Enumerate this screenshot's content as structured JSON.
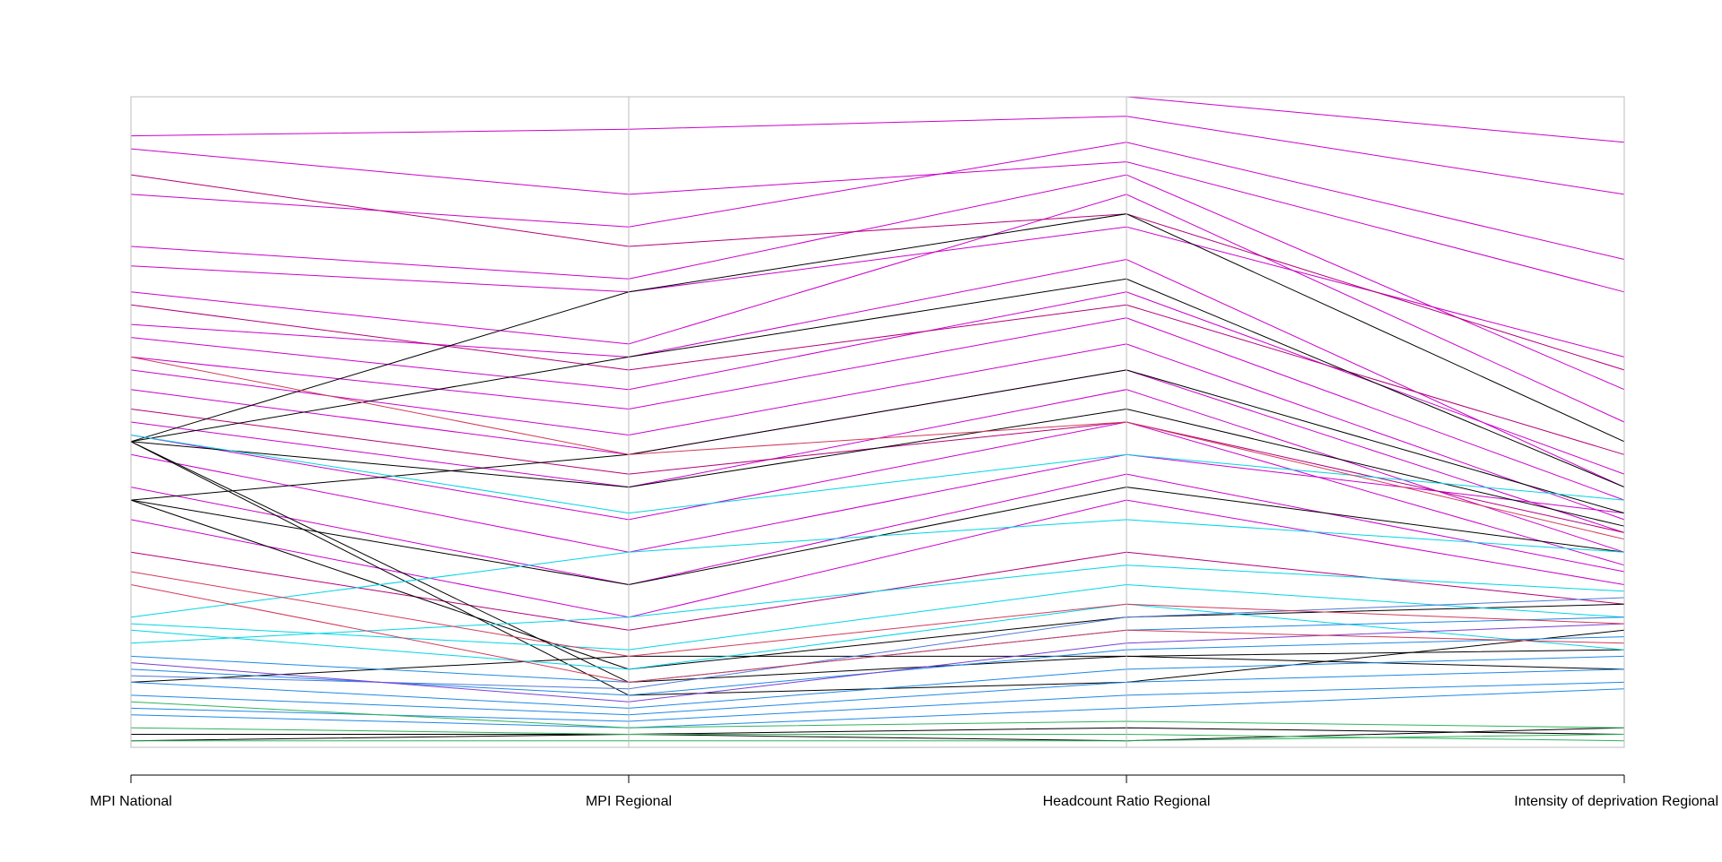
{
  "chart_data": {
    "type": "parallel-coordinates",
    "axes": [
      "MPI National",
      "MPI Regional",
      "Headcount Ratio Regional",
      "Intensity of deprivation Regional"
    ],
    "normalized_range": [
      0,
      1
    ],
    "grid": false,
    "legend": "none",
    "series": [
      {
        "color": "#cc00cc",
        "values": [
          1.0,
          1.0,
          1.0,
          0.93
        ]
      },
      {
        "color": "#cc00cc",
        "values": [
          0.94,
          0.95,
          0.97,
          0.85
        ]
      },
      {
        "color": "#cc00cc",
        "values": [
          0.92,
          0.85,
          0.9,
          0.7
        ]
      },
      {
        "color": "#cc00cc",
        "values": [
          0.85,
          0.8,
          0.93,
          0.75
        ]
      },
      {
        "color": "#cc00cc",
        "values": [
          0.77,
          0.72,
          0.88,
          0.55
        ]
      },
      {
        "color": "#cc00cc",
        "values": [
          0.74,
          0.7,
          0.8,
          0.6
        ]
      },
      {
        "color": "#cc00cc",
        "values": [
          0.7,
          0.62,
          0.85,
          0.5
        ]
      },
      {
        "color": "#cc00cc",
        "values": [
          0.65,
          0.6,
          0.75,
          0.4
        ]
      },
      {
        "color": "#cc00cc",
        "values": [
          0.63,
          0.55,
          0.7,
          0.42
        ]
      },
      {
        "color": "#cc00cc",
        "values": [
          0.6,
          0.52,
          0.66,
          0.38
        ]
      },
      {
        "color": "#cc00cc",
        "values": [
          0.58,
          0.48,
          0.62,
          0.35
        ]
      },
      {
        "color": "#cc00cc",
        "values": [
          0.55,
          0.45,
          0.58,
          0.33
        ]
      },
      {
        "color": "#cc00cc",
        "values": [
          0.5,
          0.4,
          0.55,
          0.3
        ]
      },
      {
        "color": "#cc00cc",
        "values": [
          0.48,
          0.35,
          0.5,
          0.28
        ]
      },
      {
        "color": "#cc00cc",
        "values": [
          0.45,
          0.3,
          0.45,
          0.36
        ]
      },
      {
        "color": "#cc00cc",
        "values": [
          0.4,
          0.25,
          0.42,
          0.27
        ]
      },
      {
        "color": "#cc00cc",
        "values": [
          0.35,
          0.2,
          0.38,
          0.25
        ]
      },
      {
        "color": "#b5007a",
        "values": [
          0.88,
          0.77,
          0.82,
          0.58
        ]
      },
      {
        "color": "#b5007a",
        "values": [
          0.68,
          0.58,
          0.68,
          0.45
        ]
      },
      {
        "color": "#b5007a",
        "values": [
          0.52,
          0.42,
          0.5,
          0.33
        ]
      },
      {
        "color": "#b5007a",
        "values": [
          0.3,
          0.18,
          0.3,
          0.22
        ]
      },
      {
        "color": "#000000",
        "values": [
          0.47,
          0.7,
          0.82,
          0.47
        ]
      },
      {
        "color": "#000000",
        "values": [
          0.47,
          0.6,
          0.72,
          0.4
        ]
      },
      {
        "color": "#000000",
        "values": [
          0.47,
          0.4,
          0.52,
          0.34
        ]
      },
      {
        "color": "#000000",
        "values": [
          0.47,
          0.1,
          0.14,
          0.12
        ]
      },
      {
        "color": "#000000",
        "values": [
          0.47,
          0.08,
          0.1,
          0.18
        ]
      },
      {
        "color": "#000000",
        "values": [
          0.38,
          0.45,
          0.58,
          0.36
        ]
      },
      {
        "color": "#000000",
        "values": [
          0.38,
          0.25,
          0.4,
          0.3
        ]
      },
      {
        "color": "#000000",
        "values": [
          0.38,
          0.12,
          0.2,
          0.22
        ]
      },
      {
        "color": "#000000",
        "values": [
          0.1,
          0.14,
          0.14,
          0.15
        ]
      },
      {
        "color": "#000000",
        "values": [
          0.02,
          0.02,
          0.03,
          0.02
        ]
      },
      {
        "color": "#000000",
        "values": [
          0.01,
          0.02,
          0.01,
          0.03
        ]
      },
      {
        "color": "#00d5e5",
        "values": [
          0.48,
          0.36,
          0.45,
          0.38
        ]
      },
      {
        "color": "#00d5e5",
        "values": [
          0.2,
          0.3,
          0.35,
          0.3
        ]
      },
      {
        "color": "#00d5e5",
        "values": [
          0.19,
          0.15,
          0.25,
          0.2
        ]
      },
      {
        "color": "#00d5e5",
        "values": [
          0.18,
          0.12,
          0.22,
          0.15
        ]
      },
      {
        "color": "#00d5e5",
        "values": [
          0.16,
          0.2,
          0.28,
          0.24
        ]
      },
      {
        "color": "#1e88e5",
        "values": [
          0.14,
          0.1,
          0.18,
          0.2
        ]
      },
      {
        "color": "#1e88e5",
        "values": [
          0.12,
          0.08,
          0.15,
          0.17
        ]
      },
      {
        "color": "#1e88e5",
        "values": [
          0.1,
          0.06,
          0.12,
          0.14
        ]
      },
      {
        "color": "#1e88e5",
        "values": [
          0.08,
          0.05,
          0.1,
          0.12
        ]
      },
      {
        "color": "#1e88e5",
        "values": [
          0.06,
          0.04,
          0.08,
          0.1
        ]
      },
      {
        "color": "#1e88e5",
        "values": [
          0.05,
          0.03,
          0.06,
          0.09
        ]
      },
      {
        "color": "#4f7ad6",
        "values": [
          0.11,
          0.09,
          0.2,
          0.23
        ]
      },
      {
        "color": "#7b3fd6",
        "values": [
          0.13,
          0.07,
          0.16,
          0.19
        ]
      },
      {
        "color": "#d23a5a",
        "values": [
          0.25,
          0.1,
          0.18,
          0.16
        ]
      },
      {
        "color": "#d23a5a",
        "values": [
          0.27,
          0.14,
          0.22,
          0.19
        ]
      },
      {
        "color": "#d23a5a",
        "values": [
          0.6,
          0.45,
          0.5,
          0.32
        ]
      },
      {
        "color": "#2fb35a",
        "values": [
          0.01,
          0.01,
          0.01,
          0.02
        ]
      },
      {
        "color": "#2fb35a",
        "values": [
          0.03,
          0.02,
          0.02,
          0.01
        ]
      },
      {
        "color": "#2fb35a",
        "values": [
          0.07,
          0.03,
          0.04,
          0.03
        ]
      }
    ]
  }
}
